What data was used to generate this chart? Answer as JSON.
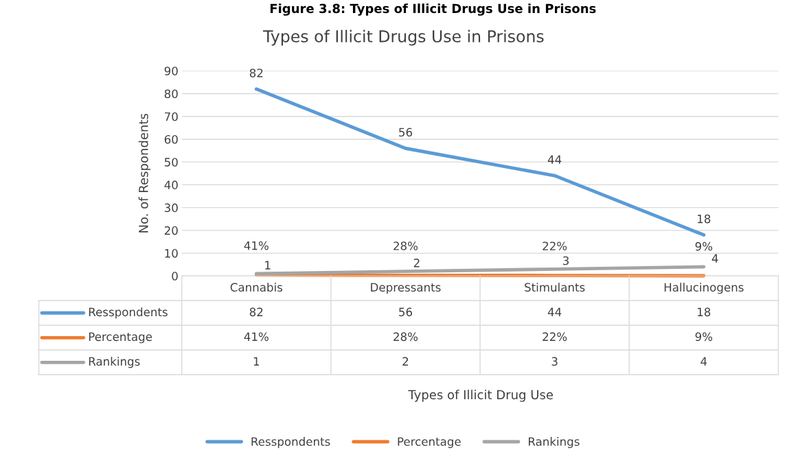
{
  "chart_data": {
    "type": "line",
    "title": "Figure 3.8: Types of Illicit Drugs Use in Prisons",
    "subtitle": "Types of Illicit Drugs Use in Prisons",
    "annotations": [
      "Types of Illicit Drug Use"
    ],
    "ylabel": "No. of Respondents",
    "categories": [
      "Cannabis",
      "Depressants",
      "Stimulants",
      "Hallucinogens"
    ],
    "series": [
      {
        "name": "Resspondents",
        "color": "#5b9bd5",
        "values": [
          82,
          56,
          44,
          18
        ],
        "value_labels": [
          "82",
          "56",
          "44",
          "18"
        ]
      },
      {
        "name": "Percentage",
        "color": "#ed7d31",
        "values": [
          0.41,
          0.28,
          0.22,
          0.09
        ],
        "value_labels": [
          "41%",
          "28%",
          "22%",
          "9%"
        ]
      },
      {
        "name": "Rankings",
        "color": "#a5a5a5",
        "values": [
          1,
          2,
          3,
          4
        ],
        "value_labels": [
          "1",
          "2",
          "3",
          "4"
        ]
      }
    ],
    "ylim": [
      0,
      90
    ],
    "yticks": [
      0,
      10,
      20,
      30,
      40,
      50,
      60,
      70,
      80,
      90
    ],
    "grid": "y",
    "legend": "bottom",
    "marker": "none",
    "line_style": "solid"
  }
}
